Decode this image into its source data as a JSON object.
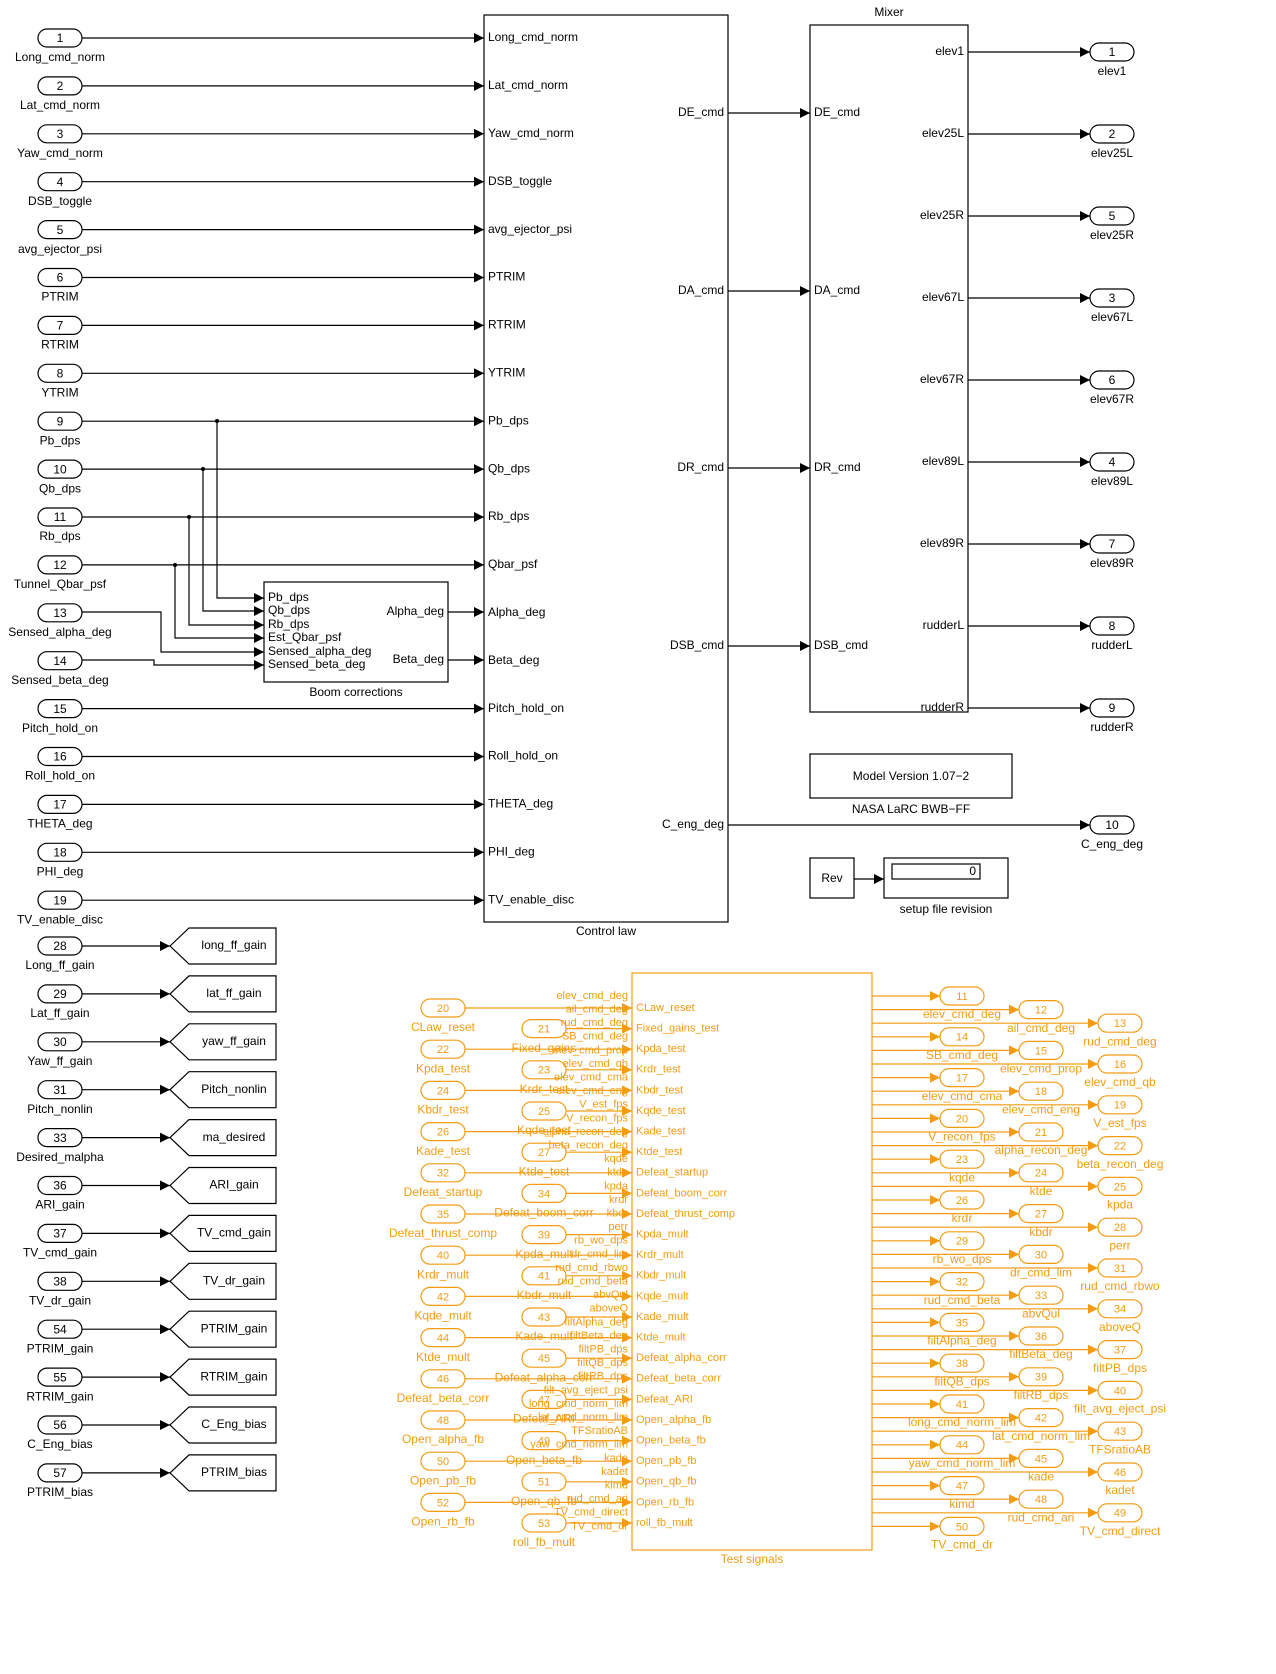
{
  "colors": {
    "black": "#000000",
    "orange": "#f39c12",
    "background": "#ffffff"
  },
  "inports": [
    {
      "num": "1",
      "name": "Long_cmd_norm"
    },
    {
      "num": "2",
      "name": "Lat_cmd_norm"
    },
    {
      "num": "3",
      "name": "Yaw_cmd_norm"
    },
    {
      "num": "4",
      "name": "DSB_toggle"
    },
    {
      "num": "5",
      "name": "avg_ejector_psi"
    },
    {
      "num": "6",
      "name": "PTRIM"
    },
    {
      "num": "7",
      "name": "RTRIM"
    },
    {
      "num": "8",
      "name": "YTRIM"
    },
    {
      "num": "9",
      "name": "Pb_dps"
    },
    {
      "num": "10",
      "name": "Qb_dps"
    },
    {
      "num": "11",
      "name": "Rb_dps"
    },
    {
      "num": "12",
      "name": "Tunnel_Qbar_psf"
    },
    {
      "num": "13",
      "name": "Sensed_alpha_deg"
    },
    {
      "num": "14",
      "name": "Sensed_beta_deg"
    },
    {
      "num": "15",
      "name": "Pitch_hold_on"
    },
    {
      "num": "16",
      "name": "Roll_hold_on"
    },
    {
      "num": "17",
      "name": "THETA_deg"
    },
    {
      "num": "18",
      "name": "PHI_deg"
    },
    {
      "num": "19",
      "name": "TV_enable_disc"
    }
  ],
  "control_law": {
    "label": "Control law",
    "inputs": [
      "Long_cmd_norm",
      "Lat_cmd_norm",
      "Yaw_cmd_norm",
      "DSB_toggle",
      "avg_ejector_psi",
      "PTRIM",
      "RTRIM",
      "YTRIM",
      "Pb_dps",
      "Qb_dps",
      "Rb_dps",
      "Qbar_psf",
      "Alpha_deg",
      "Beta_deg",
      "Pitch_hold_on",
      "Roll_hold_on",
      "THETA_deg",
      "PHI_deg",
      "TV_enable_disc"
    ],
    "outputs": [
      "DE_cmd",
      "DA_cmd",
      "DR_cmd",
      "DSB_cmd",
      "C_eng_deg"
    ]
  },
  "boom": {
    "label": "Boom corrections",
    "inputs": [
      "Pb_dps",
      "Qb_dps",
      "Rb_dps",
      "Est_Qbar_psf",
      "Sensed_alpha_deg",
      "Sensed_beta_deg"
    ],
    "outputs": [
      "Alpha_deg",
      "Beta_deg"
    ]
  },
  "mixer": {
    "title": "Mixer",
    "inputs": [
      "DE_cmd",
      "DA_cmd",
      "DR_cmd",
      "DSB_cmd"
    ],
    "outputs": [
      "elev1",
      "elev25L",
      "elev25R",
      "elev67L",
      "elev67R",
      "elev89L",
      "elev89R",
      "rudderL",
      "rudderR"
    ]
  },
  "outports": [
    {
      "num": "1",
      "name": "elev1"
    },
    {
      "num": "2",
      "name": "elev25L"
    },
    {
      "num": "5",
      "name": "elev25R"
    },
    {
      "num": "3",
      "name": "elev67L"
    },
    {
      "num": "6",
      "name": "elev67R"
    },
    {
      "num": "4",
      "name": "elev89L"
    },
    {
      "num": "7",
      "name": "elev89R"
    },
    {
      "num": "8",
      "name": "rudderL"
    },
    {
      "num": "9",
      "name": "rudderR"
    },
    {
      "num": "10",
      "name": "C_eng_deg"
    }
  ],
  "model_version": {
    "text": "Model Version 1.07−2",
    "caption": "NASA LaRC BWB−FF"
  },
  "rev": {
    "label": "Rev",
    "display_value": "0",
    "caption": "setup file revision"
  },
  "gain_ports": [
    {
      "num": "28",
      "name": "Long_ff_gain",
      "goto": "long_ff_gain"
    },
    {
      "num": "29",
      "name": "Lat_ff_gain",
      "goto": "lat_ff_gain"
    },
    {
      "num": "30",
      "name": "Yaw_ff_gain",
      "goto": "yaw_ff_gain"
    },
    {
      "num": "31",
      "name": "Pitch_nonlin",
      "goto": "Pitch_nonlin"
    },
    {
      "num": "33",
      "name": "Desired_malpha",
      "goto": "ma_desired"
    },
    {
      "num": "36",
      "name": "ARI_gain",
      "goto": "ARI_gain"
    },
    {
      "num": "37",
      "name": "TV_cmd_gain",
      "goto": "TV_cmd_gain"
    },
    {
      "num": "38",
      "name": "TV_dr_gain",
      "goto": "TV_dr_gain"
    },
    {
      "num": "54",
      "name": "PTRIM_gain",
      "goto": "PTRIM_gain"
    },
    {
      "num": "55",
      "name": "RTRIM_gain",
      "goto": "RTRIM_gain"
    },
    {
      "num": "56",
      "name": "C_Eng_bias",
      "goto": "C_Eng_bias"
    },
    {
      "num": "57",
      "name": "PTRIM_bias",
      "goto": "PTRIM_bias"
    }
  ],
  "test_signals": {
    "label": "Test signals",
    "inputs": [
      "CLaw_reset",
      "Fixed_gains_test",
      "Kpda_test",
      "Krdr_test",
      "Kbdr_test",
      "Kqde_test",
      "Kade_test",
      "Ktde_test",
      "Defeat_startup",
      "Defeat_boom_corr",
      "Defeat_thrust_comp",
      "Kpda_mult",
      "Krdr_mult",
      "Kbdr_mult",
      "Kqde_mult",
      "Kade_mult",
      "Ktde_mult",
      "Defeat_alpha_corr",
      "Defeat_beta_corr",
      "Defeat_ARI",
      "Open_alpha_fb",
      "Open_beta_fb",
      "Open_pb_fb",
      "Open_qb_fb",
      "Open_rb_fb",
      "roll_fb_mult"
    ],
    "outputs": [
      "elev_cmd_deg",
      "ail_cmd_deg",
      "rud_cmd_deg",
      "SB_cmd_deg",
      "elev_cmd_prop",
      "elev_cmd_qb",
      "elev_cmd_cma",
      "elev_cmd_eng",
      "V_est_fps",
      "V_recon_fps",
      "alpha_recon_deg",
      "beta_recon_deg",
      "kqde",
      "ktde",
      "kpda",
      "krdr",
      "kbdr",
      "perr",
      "rb_wo_dps",
      "dr_cmd_lim",
      "rud_cmd_rbwo",
      "rud_cmd_beta",
      "abvQul",
      "aboveQ",
      "filtAlpha_deg",
      "filtBeta_deg",
      "filtPB_dps",
      "filtQB_dps",
      "filtRB_dps",
      "filt_avg_eject_psi",
      "long_cmd_norm_lim",
      "lat_cmd_norm_lim",
      "TFSratioAB",
      "yaw_cmd_norm_lim",
      "kade",
      "kadet",
      "kimd",
      "rud_cmd_ari",
      "TV_cmd_direct",
      "TV_cmd_dr"
    ]
  },
  "test_inports": [
    {
      "num": "20",
      "name": "CLaw_reset"
    },
    {
      "num": "21",
      "name": "Fixed_gains"
    },
    {
      "num": "22",
      "name": "Kpda_test"
    },
    {
      "num": "23",
      "name": "Krdr_test"
    },
    {
      "num": "24",
      "name": "Kbdr_test"
    },
    {
      "num": "25",
      "name": "Kqde_test"
    },
    {
      "num": "26",
      "name": "Kade_test"
    },
    {
      "num": "27",
      "name": "Ktde_test"
    },
    {
      "num": "32",
      "name": "Defeat_startup"
    },
    {
      "num": "34",
      "name": "Defeat_boom_corr"
    },
    {
      "num": "35",
      "name": "Defeat_thrust_comp"
    },
    {
      "num": "39",
      "name": "Kpda_mult"
    },
    {
      "num": "40",
      "name": "Krdr_mult"
    },
    {
      "num": "41",
      "name": "Kbdr_mult"
    },
    {
      "num": "42",
      "name": "Kqde_mult"
    },
    {
      "num": "43",
      "name": "Kade_mult"
    },
    {
      "num": "44",
      "name": "Ktde_mult"
    },
    {
      "num": "45",
      "name": "Defeat_alpha_corr"
    },
    {
      "num": "46",
      "name": "Defeat_beta_corr"
    },
    {
      "num": "47",
      "name": "Defeat_ARI"
    },
    {
      "num": "48",
      "name": "Open_alpha_fb"
    },
    {
      "num": "49",
      "name": "Open_beta_fb"
    },
    {
      "num": "50",
      "name": "Open_pb_fb"
    },
    {
      "num": "51",
      "name": "Open_qb_fb"
    },
    {
      "num": "52",
      "name": "Open_rb_fb"
    },
    {
      "num": "53",
      "name": "roll_fb_mult"
    }
  ],
  "test_outports": [
    {
      "num": "11",
      "name": "elev_cmd_deg"
    },
    {
      "num": "12",
      "name": "ail_cmd_deg"
    },
    {
      "num": "13",
      "name": "rud_cmd_deg"
    },
    {
      "num": "14",
      "name": "SB_cmd_deg"
    },
    {
      "num": "15",
      "name": "elev_cmd_prop"
    },
    {
      "num": "16",
      "name": "elev_cmd_qb"
    },
    {
      "num": "17",
      "name": "elev_cmd_cma"
    },
    {
      "num": "18",
      "name": "elev_cmd_eng"
    },
    {
      "num": "19",
      "name": "V_est_fps"
    },
    {
      "num": "20",
      "name": "V_recon_fps"
    },
    {
      "num": "21",
      "name": "alpha_recon_deg"
    },
    {
      "num": "22",
      "name": "beta_recon_deg"
    },
    {
      "num": "23",
      "name": "kqde"
    },
    {
      "num": "24",
      "name": "ktde"
    },
    {
      "num": "25",
      "name": "kpda"
    },
    {
      "num": "26",
      "name": "krdr"
    },
    {
      "num": "27",
      "name": "kbdr"
    },
    {
      "num": "28",
      "name": "perr"
    },
    {
      "num": "29",
      "name": "rb_wo_dps"
    },
    {
      "num": "30",
      "name": "dr_cmd_lim"
    },
    {
      "num": "31",
      "name": "rud_cmd_rbwo"
    },
    {
      "num": "32",
      "name": "rud_cmd_beta"
    },
    {
      "num": "33",
      "name": "abvQul"
    },
    {
      "num": "34",
      "name": "aboveQ"
    },
    {
      "num": "35",
      "name": "filtAlpha_deg"
    },
    {
      "num": "36",
      "name": "filtBeta_deg"
    },
    {
      "num": "37",
      "name": "filtPB_dps"
    },
    {
      "num": "38",
      "name": "filtQB_dps"
    },
    {
      "num": "39",
      "name": "filtRB_dps"
    },
    {
      "num": "40",
      "name": "filt_avg_eject_psi"
    },
    {
      "num": "41",
      "name": "long_cmd_norm_lim"
    },
    {
      "num": "42",
      "name": "lat_cmd_norm_lim"
    },
    {
      "num": "43",
      "name": "TFSratioAB"
    },
    {
      "num": "44",
      "name": "yaw_cmd_norm_lim"
    },
    {
      "num": "45",
      "name": "kade"
    },
    {
      "num": "46",
      "name": "kadet"
    },
    {
      "num": "47",
      "name": "kimd"
    },
    {
      "num": "48",
      "name": "rud_cmd_ari"
    },
    {
      "num": "49",
      "name": "TV_cmd_direct"
    },
    {
      "num": "50",
      "name": "TV_cmd_dr"
    }
  ]
}
